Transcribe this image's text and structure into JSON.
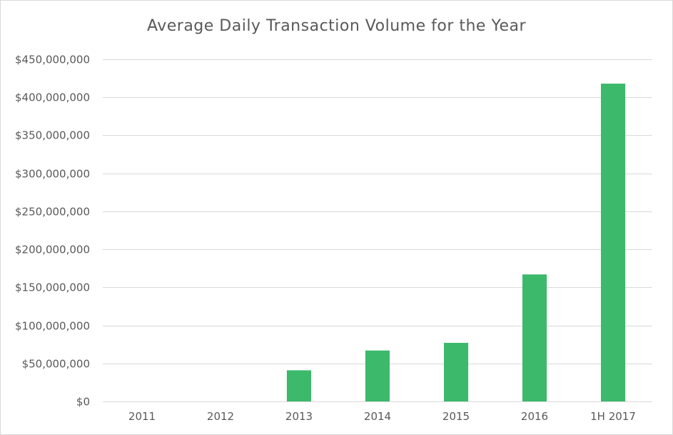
{
  "chart_data": {
    "type": "bar",
    "title": "Average Daily Transaction Volume for the Year",
    "xlabel": "",
    "ylabel": "",
    "categories": [
      "2011",
      "2012",
      "2013",
      "2014",
      "2015",
      "2016",
      "1H 2017"
    ],
    "values": [
      0,
      0,
      41000000,
      67000000,
      77000000,
      167000000,
      418000000
    ],
    "ylim": [
      0,
      450000000
    ],
    "y_ticks": [
      0,
      50000000,
      100000000,
      150000000,
      200000000,
      250000000,
      300000000,
      350000000,
      400000000,
      450000000
    ],
    "y_tick_labels": [
      "$0",
      "$50,000,000",
      "$100,000,000",
      "$150,000,000",
      "$200,000,000",
      "$250,000,000",
      "$300,000,000",
      "$350,000,000",
      "$400,000,000",
      "$450,000,000"
    ],
    "grid": true,
    "legend": "none",
    "bar_color": "#3cb96b",
    "grid_color": "#d9d9d9",
    "text_color": "#595959"
  }
}
